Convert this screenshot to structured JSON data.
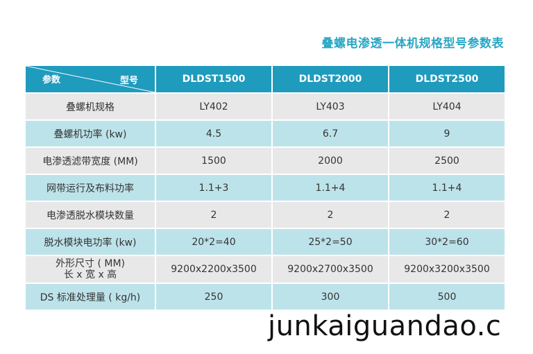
{
  "title": "叠螺电渗透一体机规格型号参数表",
  "header": {
    "param_label": "参数",
    "model_label": "型号",
    "models": [
      "DLDST1500",
      "DLDST2000",
      "DLDST2500"
    ]
  },
  "rows": [
    {
      "label": "叠螺机规格",
      "values": [
        "LY402",
        "LY403",
        "LY404"
      ]
    },
    {
      "label": "叠螺机功率 (kw)",
      "values": [
        "4.5",
        "6.7",
        "9"
      ]
    },
    {
      "label": "电渗透滤带宽度 (MM)",
      "values": [
        "1500",
        "2000",
        "2500"
      ]
    },
    {
      "label": "网带运行及布料功率",
      "values": [
        "1.1+3",
        "1.1+4",
        "1.1+4"
      ]
    },
    {
      "label": "电渗透脱水模块数量",
      "values": [
        "2",
        "2",
        "2"
      ]
    },
    {
      "label": "脱水模块电功率 (kw)",
      "values": [
        "20*2=40",
        "25*2=50",
        "30*2=60"
      ]
    },
    {
      "label_line1": "外形尺寸 ( MM)",
      "label_line2": "长 x 宽 x 高",
      "values": [
        "9200x2200x3500",
        "9200x2700x3500",
        "9200x3200x3500"
      ]
    },
    {
      "label": "DS 标准处理量 ( kg/h)",
      "values": [
        "250",
        "300",
        "500"
      ]
    }
  ],
  "watermark": "junkaiguandao.c"
}
